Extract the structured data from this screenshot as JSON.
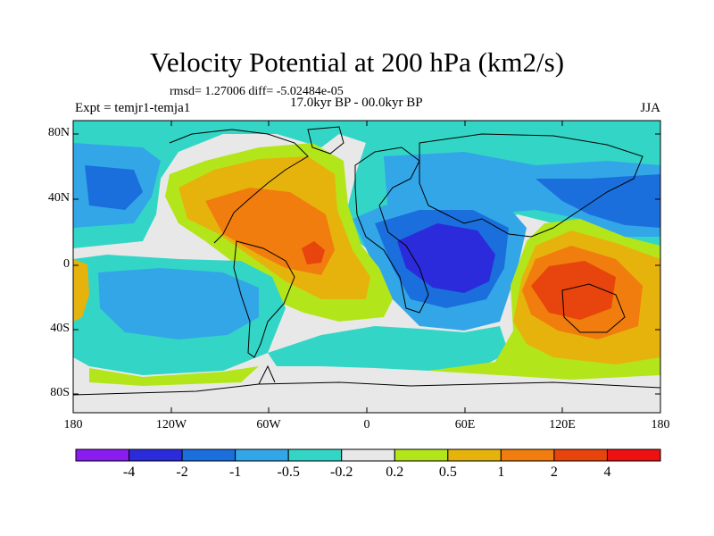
{
  "title": "Velocity Potential at 200 hPa (km2/s)",
  "stats": "rmsd= 1.27006 diff= -5.02484e-05",
  "period": "17.0kyr BP - 00.0kyr BP",
  "experiment": "Expt = temjr1-temja1",
  "season": "JJA",
  "lat_ticks": [
    "80N",
    "40N",
    "0",
    "40S",
    "80S"
  ],
  "lon_ticks": [
    "180",
    "120W",
    "60W",
    "0",
    "60E",
    "120E",
    "180"
  ],
  "colorbar": {
    "labels": [
      "-4",
      "-2",
      "-1",
      "-0.5",
      "-0.2",
      "0.2",
      "0.5",
      "1",
      "2",
      "4"
    ],
    "colors": [
      "#8a1cf0",
      "#2b2bdc",
      "#1a6fdd",
      "#33a6e8",
      "#33d6c6",
      "#e8e8e8",
      "#b3e61a",
      "#e6b30d",
      "#f07d0d",
      "#e8440d",
      "#ee1111"
    ]
  },
  "map_colors": {
    "neutral": "#e8e8e8",
    "pos1": "#b3e61a",
    "pos2": "#e6b30d",
    "pos3": "#f07d0d",
    "pos4": "#e8440d",
    "neg1": "#33d6c6",
    "neg2": "#33a6e8",
    "neg3": "#1a6fdd",
    "neg4": "#2b2bdc"
  }
}
